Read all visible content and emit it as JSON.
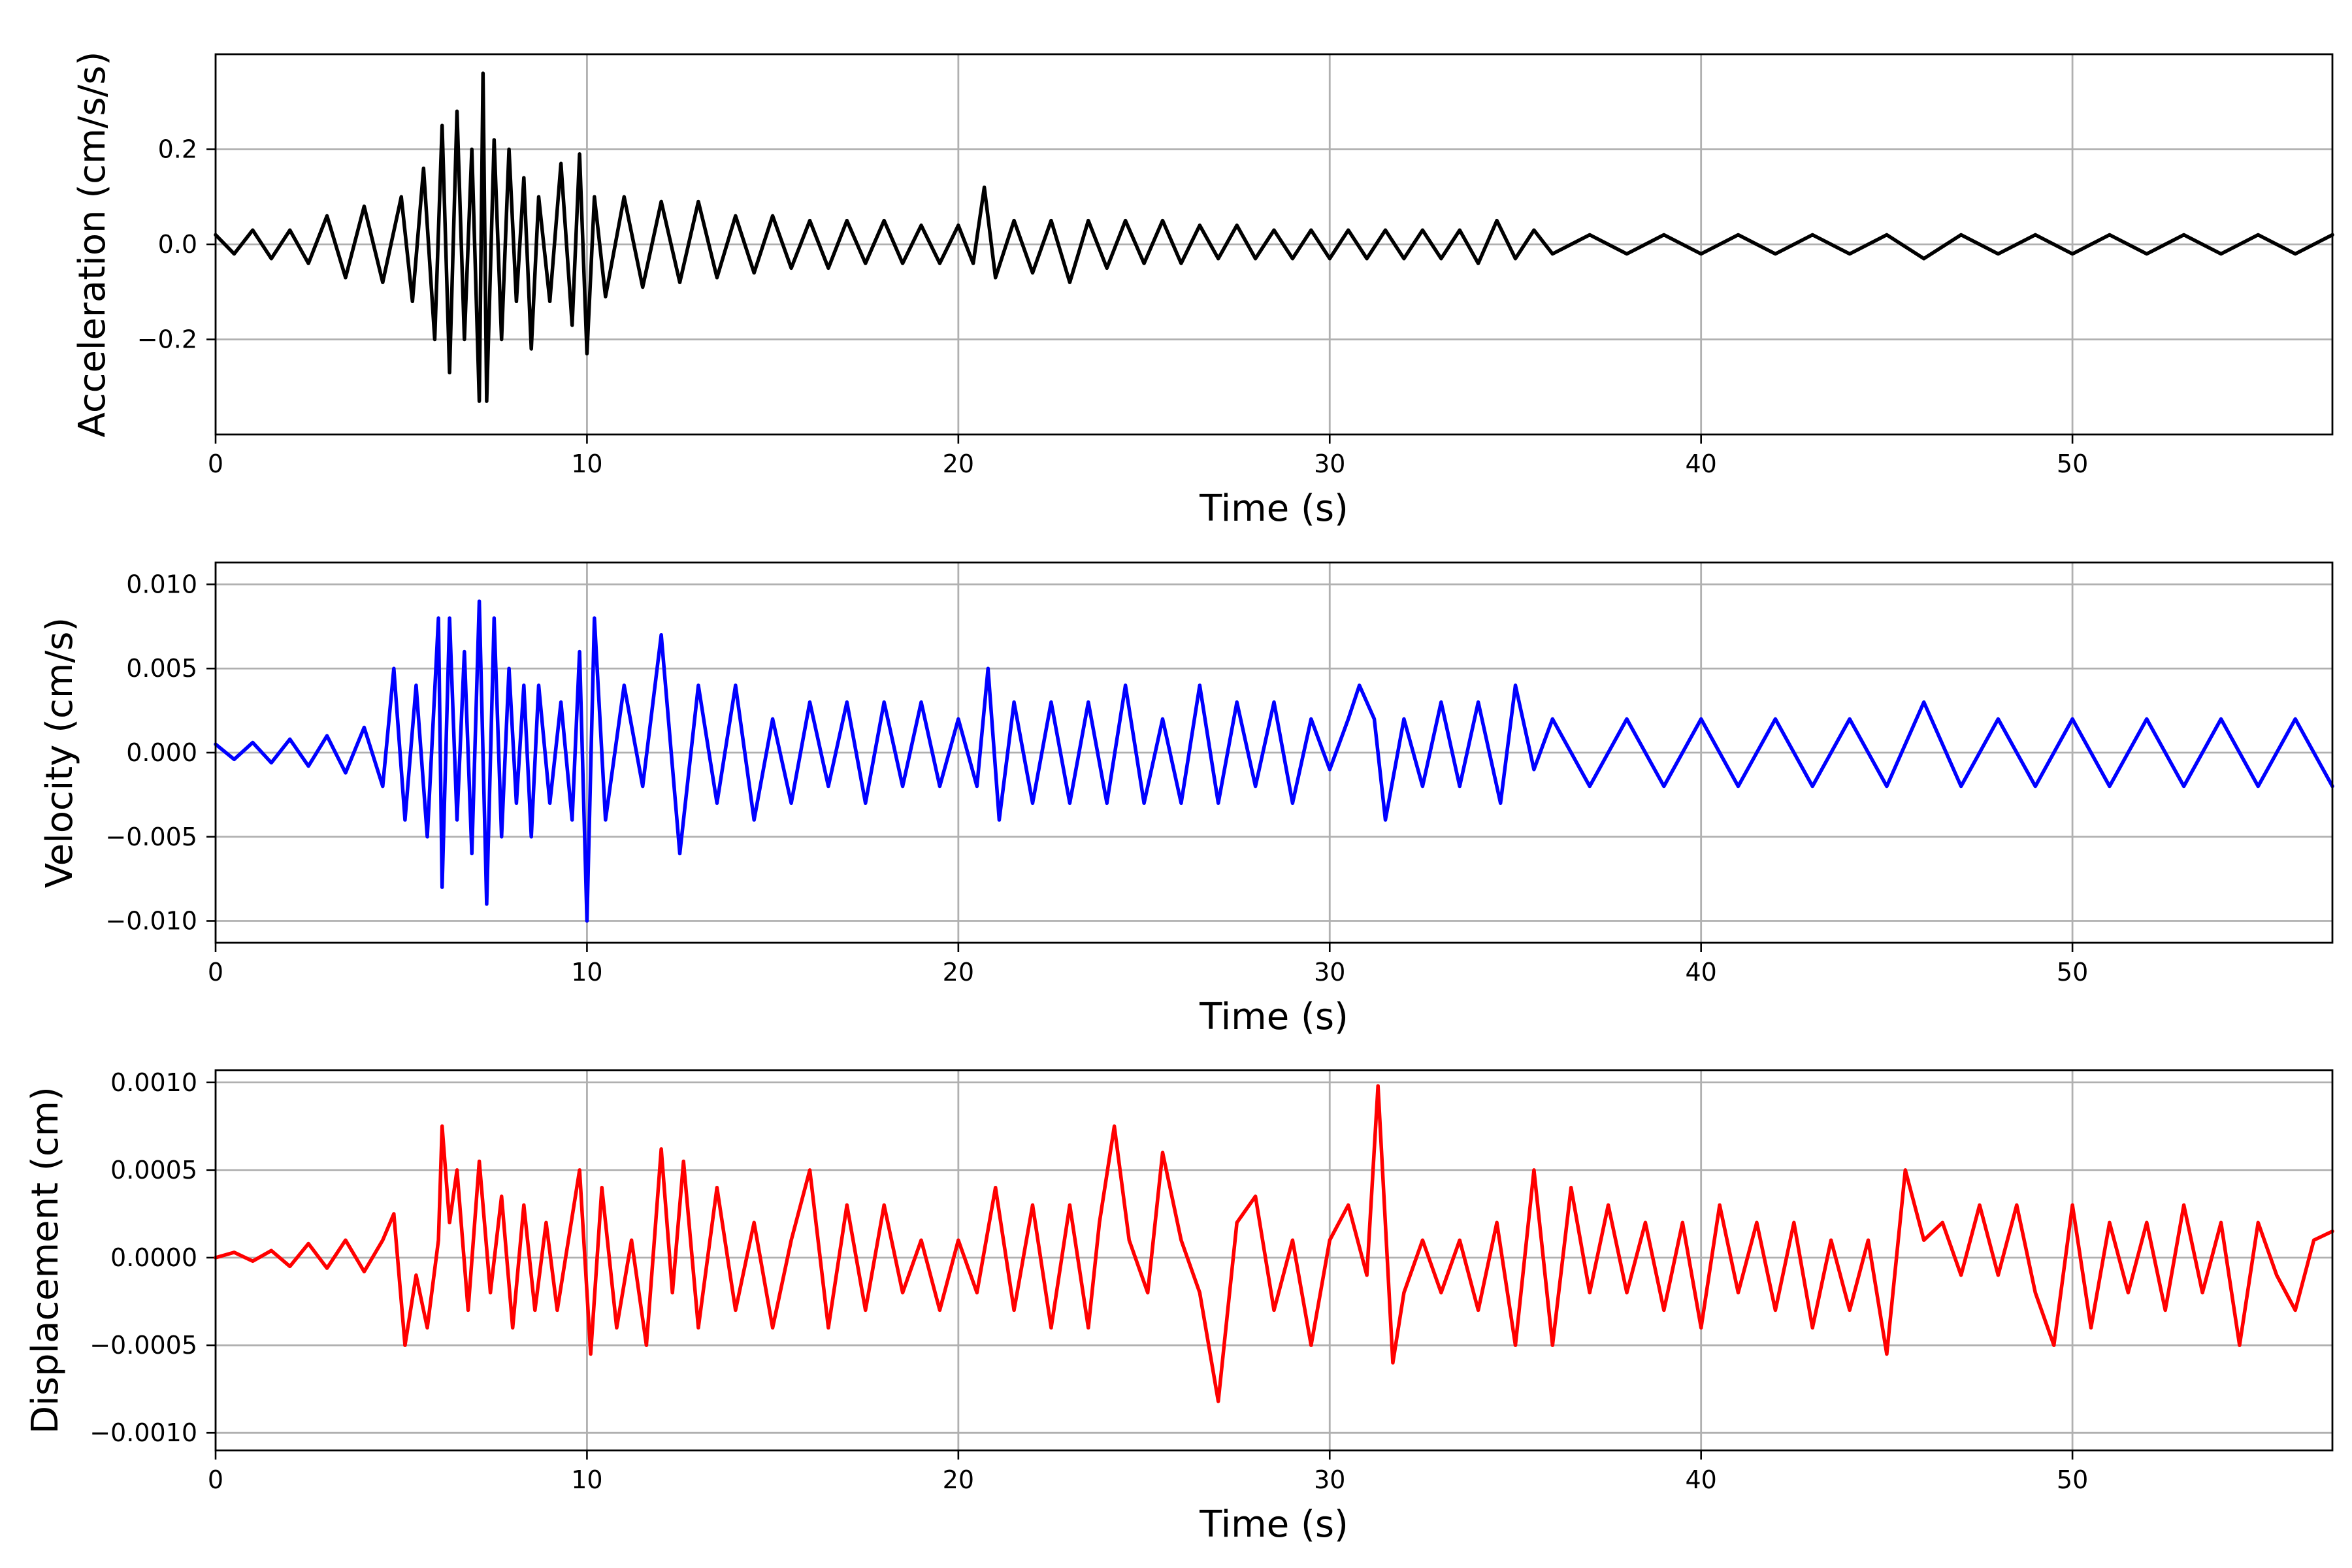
{
  "chart_data": [
    {
      "type": "line",
      "xlabel": "Time (s)",
      "ylabel": "Acceleration (cm/s/s)",
      "xlim": [
        0,
        57
      ],
      "ylim": [
        -0.4,
        0.4
      ],
      "xticks": [
        0,
        10,
        20,
        30,
        40,
        50
      ],
      "xtick_labels": [
        "0",
        "10",
        "20",
        "30",
        "40",
        "50"
      ],
      "yticks": [
        -0.2,
        0.0,
        0.2
      ],
      "ytick_labels": [
        "−0.2",
        "0.0",
        "0.2"
      ],
      "grid": true,
      "color": "#000000",
      "series": [
        {
          "x": [
            0,
            0.5,
            1,
            1.5,
            2,
            2.5,
            3,
            3.5,
            4,
            4.5,
            5,
            5.3,
            5.6,
            5.9,
            6.1,
            6.3,
            6.5,
            6.7,
            6.9,
            7.1,
            7.2,
            7.3,
            7.5,
            7.7,
            7.9,
            8.1,
            8.3,
            8.5,
            8.7,
            9,
            9.3,
            9.6,
            9.8,
            10,
            10.2,
            10.5,
            11,
            11.5,
            12,
            12.5,
            13,
            13.5,
            14,
            14.5,
            15,
            15.5,
            16,
            16.5,
            17,
            17.5,
            18,
            18.5,
            19,
            19.5,
            20,
            20.4,
            20.7,
            21,
            21.5,
            22,
            22.5,
            23,
            23.5,
            24,
            24.5,
            25,
            25.5,
            26,
            26.5,
            27,
            27.5,
            28,
            28.5,
            29,
            29.5,
            30,
            30.5,
            31,
            31.5,
            32,
            32.5,
            33,
            33.5,
            34,
            34.5,
            35,
            35.5,
            36,
            37,
            38,
            39,
            40,
            41,
            42,
            43,
            44,
            45,
            46,
            47,
            48,
            49,
            50,
            51,
            52,
            53,
            54,
            55,
            56,
            57
          ],
          "y": [
            0.02,
            -0.02,
            0.03,
            -0.03,
            0.03,
            -0.04,
            0.06,
            -0.07,
            0.08,
            -0.08,
            0.1,
            -0.12,
            0.16,
            -0.2,
            0.25,
            -0.27,
            0.28,
            -0.2,
            0.2,
            -0.33,
            0.36,
            -0.33,
            0.22,
            -0.2,
            0.2,
            -0.12,
            0.14,
            -0.22,
            0.1,
            -0.12,
            0.17,
            -0.17,
            0.19,
            -0.23,
            0.1,
            -0.11,
            0.1,
            -0.09,
            0.09,
            -0.08,
            0.09,
            -0.07,
            0.06,
            -0.06,
            0.06,
            -0.05,
            0.05,
            -0.05,
            0.05,
            -0.04,
            0.05,
            -0.04,
            0.04,
            -0.04,
            0.04,
            -0.04,
            0.12,
            -0.07,
            0.05,
            -0.06,
            0.05,
            -0.08,
            0.05,
            -0.05,
            0.05,
            -0.04,
            0.05,
            -0.04,
            0.04,
            -0.03,
            0.04,
            -0.03,
            0.03,
            -0.03,
            0.03,
            -0.03,
            0.03,
            -0.03,
            0.03,
            -0.03,
            0.03,
            -0.03,
            0.03,
            -0.04,
            0.05,
            -0.03,
            0.03,
            -0.02,
            0.02,
            -0.02,
            0.02,
            -0.02,
            0.02,
            -0.02,
            0.02,
            -0.02,
            0.02,
            -0.03,
            0.02,
            -0.02,
            0.02,
            -0.02,
            0.02,
            -0.02,
            0.02,
            -0.02,
            0.02,
            -0.02,
            0.02
          ]
        }
      ]
    },
    {
      "type": "line",
      "xlabel": "Time (s)",
      "ylabel": "Velocity (cm/s)",
      "xlim": [
        0,
        57
      ],
      "ylim": [
        -0.0113,
        0.0113
      ],
      "xticks": [
        0,
        10,
        20,
        30,
        40,
        50
      ],
      "xtick_labels": [
        "0",
        "10",
        "20",
        "30",
        "40",
        "50"
      ],
      "yticks": [
        -0.01,
        -0.005,
        0.0,
        0.005,
        0.01
      ],
      "ytick_labels": [
        "−0.010",
        "−0.005",
        "0.000",
        "0.005",
        "0.010"
      ],
      "grid": true,
      "color": "#0000ff",
      "series": [
        {
          "x": [
            0,
            0.5,
            1,
            1.5,
            2,
            2.5,
            3,
            3.5,
            4,
            4.5,
            4.8,
            5.1,
            5.4,
            5.7,
            6,
            6.1,
            6.3,
            6.5,
            6.7,
            6.9,
            7.1,
            7.3,
            7.5,
            7.7,
            7.9,
            8.1,
            8.3,
            8.5,
            8.7,
            9,
            9.3,
            9.6,
            9.8,
            10,
            10.2,
            10.5,
            11,
            11.5,
            12,
            12.5,
            13,
            13.5,
            14,
            14.5,
            15,
            15.5,
            16,
            16.5,
            17,
            17.5,
            18,
            18.5,
            19,
            19.5,
            20,
            20.5,
            20.8,
            21.1,
            21.5,
            22,
            22.5,
            23,
            23.5,
            24,
            24.5,
            25,
            25.5,
            26,
            26.5,
            27,
            27.5,
            28,
            28.5,
            29,
            29.5,
            30,
            30.5,
            30.8,
            31.2,
            31.5,
            32,
            32.5,
            33,
            33.5,
            34,
            34.6,
            35,
            35.5,
            36,
            37,
            38,
            39,
            40,
            41,
            42,
            43,
            44,
            45,
            46,
            47,
            48,
            49,
            50,
            51,
            52,
            53,
            54,
            55,
            56,
            57
          ],
          "y": [
            0.0005,
            -0.0004,
            0.0006,
            -0.0006,
            0.0008,
            -0.0008,
            0.001,
            -0.0012,
            0.0015,
            -0.002,
            0.005,
            -0.004,
            0.004,
            -0.005,
            0.008,
            -0.008,
            0.008,
            -0.004,
            0.006,
            -0.006,
            0.009,
            -0.009,
            0.008,
            -0.005,
            0.005,
            -0.003,
            0.004,
            -0.005,
            0.004,
            -0.003,
            0.003,
            -0.004,
            0.006,
            -0.01,
            0.008,
            -0.004,
            0.004,
            -0.002,
            0.007,
            -0.006,
            0.004,
            -0.003,
            0.004,
            -0.004,
            0.002,
            -0.003,
            0.003,
            -0.002,
            0.003,
            -0.003,
            0.003,
            -0.002,
            0.003,
            -0.002,
            0.002,
            -0.002,
            0.005,
            -0.004,
            0.003,
            -0.003,
            0.003,
            -0.003,
            0.003,
            -0.003,
            0.004,
            -0.003,
            0.002,
            -0.003,
            0.004,
            -0.003,
            0.003,
            -0.002,
            0.003,
            -0.003,
            0.002,
            -0.001,
            0.002,
            0.004,
            0.002,
            -0.004,
            0.002,
            -0.002,
            0.003,
            -0.002,
            0.003,
            -0.003,
            0.004,
            -0.001,
            0.002,
            -0.002,
            0.002,
            -0.002,
            0.002,
            -0.002,
            0.002,
            -0.002,
            0.002,
            -0.002,
            0.003,
            -0.002,
            0.002,
            -0.002,
            0.002,
            -0.002,
            0.002,
            -0.002,
            0.002,
            -0.002,
            0.002,
            -0.002
          ]
        }
      ]
    },
    {
      "type": "line",
      "xlabel": "Time (s)",
      "ylabel": "Displacement (cm)",
      "xlim": [
        0,
        57
      ],
      "ylim": [
        -0.0011,
        0.00107
      ],
      "xticks": [
        0,
        10,
        20,
        30,
        40,
        50
      ],
      "xtick_labels": [
        "0",
        "10",
        "20",
        "30",
        "40",
        "50"
      ],
      "yticks": [
        -0.001,
        -0.0005,
        0.0,
        0.0005,
        0.001
      ],
      "ytick_labels": [
        "−0.0010",
        "−0.0005",
        "0.0000",
        "0.0005",
        "0.0010"
      ],
      "grid": true,
      "color": "#ff0000",
      "series": [
        {
          "x": [
            0,
            0.5,
            1,
            1.5,
            2,
            2.5,
            3,
            3.5,
            4,
            4.5,
            4.8,
            5.1,
            5.4,
            5.7,
            6,
            6.1,
            6.3,
            6.5,
            6.8,
            7.1,
            7.4,
            7.7,
            8,
            8.3,
            8.6,
            8.9,
            9.2,
            9.5,
            9.8,
            10.1,
            10.4,
            10.8,
            11.2,
            11.6,
            12,
            12.3,
            12.6,
            13,
            13.5,
            14,
            14.5,
            15,
            15.5,
            16,
            16.5,
            17,
            17.5,
            18,
            18.5,
            19,
            19.5,
            20,
            20.5,
            21,
            21.5,
            22,
            22.5,
            23,
            23.5,
            23.8,
            24.2,
            24.6,
            25.1,
            25.5,
            26,
            26.5,
            27,
            27.5,
            28,
            28.5,
            29,
            29.5,
            30,
            30.5,
            31,
            31.3,
            31.7,
            32,
            32.5,
            33,
            33.5,
            34,
            34.5,
            35,
            35.5,
            36,
            36.5,
            37,
            37.5,
            38,
            38.5,
            39,
            39.5,
            40,
            40.5,
            41,
            41.5,
            42,
            42.5,
            43,
            43.5,
            44,
            44.5,
            45,
            45.5,
            46,
            46.5,
            47,
            47.5,
            48,
            48.5,
            49,
            49.5,
            50,
            50.5,
            51,
            51.5,
            52,
            52.5,
            53,
            53.5,
            54,
            54.5,
            55,
            55.5,
            56,
            56.5,
            57
          ],
          "y": [
            0.0,
            3e-05,
            -2e-05,
            4e-05,
            -5e-05,
            8e-05,
            -6e-05,
            0.0001,
            -8e-05,
            0.0001,
            0.00025,
            -0.0005,
            -0.0001,
            -0.0004,
            0.0001,
            0.00075,
            0.0002,
            0.0005,
            -0.0003,
            0.00055,
            -0.0002,
            0.00035,
            -0.0004,
            0.0003,
            -0.0003,
            0.0002,
            -0.0003,
            0.0001,
            0.0005,
            -0.00055,
            0.0004,
            -0.0004,
            0.0001,
            -0.0005,
            0.00062,
            -0.0002,
            0.00055,
            -0.0004,
            0.0004,
            -0.0003,
            0.0002,
            -0.0004,
            0.0001,
            0.0005,
            -0.0004,
            0.0003,
            -0.0003,
            0.0003,
            -0.0002,
            0.0001,
            -0.0003,
            0.0001,
            -0.0002,
            0.0004,
            -0.0003,
            0.0003,
            -0.0004,
            0.0003,
            -0.0004,
            0.0002,
            0.00075,
            0.0001,
            -0.0002,
            0.0006,
            0.0001,
            -0.0002,
            -0.00082,
            0.0002,
            0.00035,
            -0.0003,
            0.0001,
            -0.0005,
            0.0001,
            0.0003,
            -0.0001,
            0.00098,
            -0.0006,
            -0.0002,
            0.0001,
            -0.0002,
            0.0001,
            -0.0003,
            0.0002,
            -0.0005,
            0.0005,
            -0.0005,
            0.0004,
            -0.0002,
            0.0003,
            -0.0002,
            0.0002,
            -0.0003,
            0.0002,
            -0.0004,
            0.0003,
            -0.0002,
            0.0002,
            -0.0003,
            0.0002,
            -0.0004,
            0.0001,
            -0.0003,
            0.0001,
            -0.00055,
            0.0005,
            0.0001,
            0.0002,
            -0.0001,
            0.0003,
            -0.0001,
            0.0003,
            -0.0002,
            -0.0005,
            0.0003,
            -0.0004,
            0.0002,
            -0.0002,
            0.0002,
            -0.0003,
            0.0003,
            -0.0002,
            0.0002,
            -0.0005,
            0.0002,
            -0.0001,
            -0.0003,
            0.0001,
            0.00015
          ]
        }
      ]
    }
  ]
}
